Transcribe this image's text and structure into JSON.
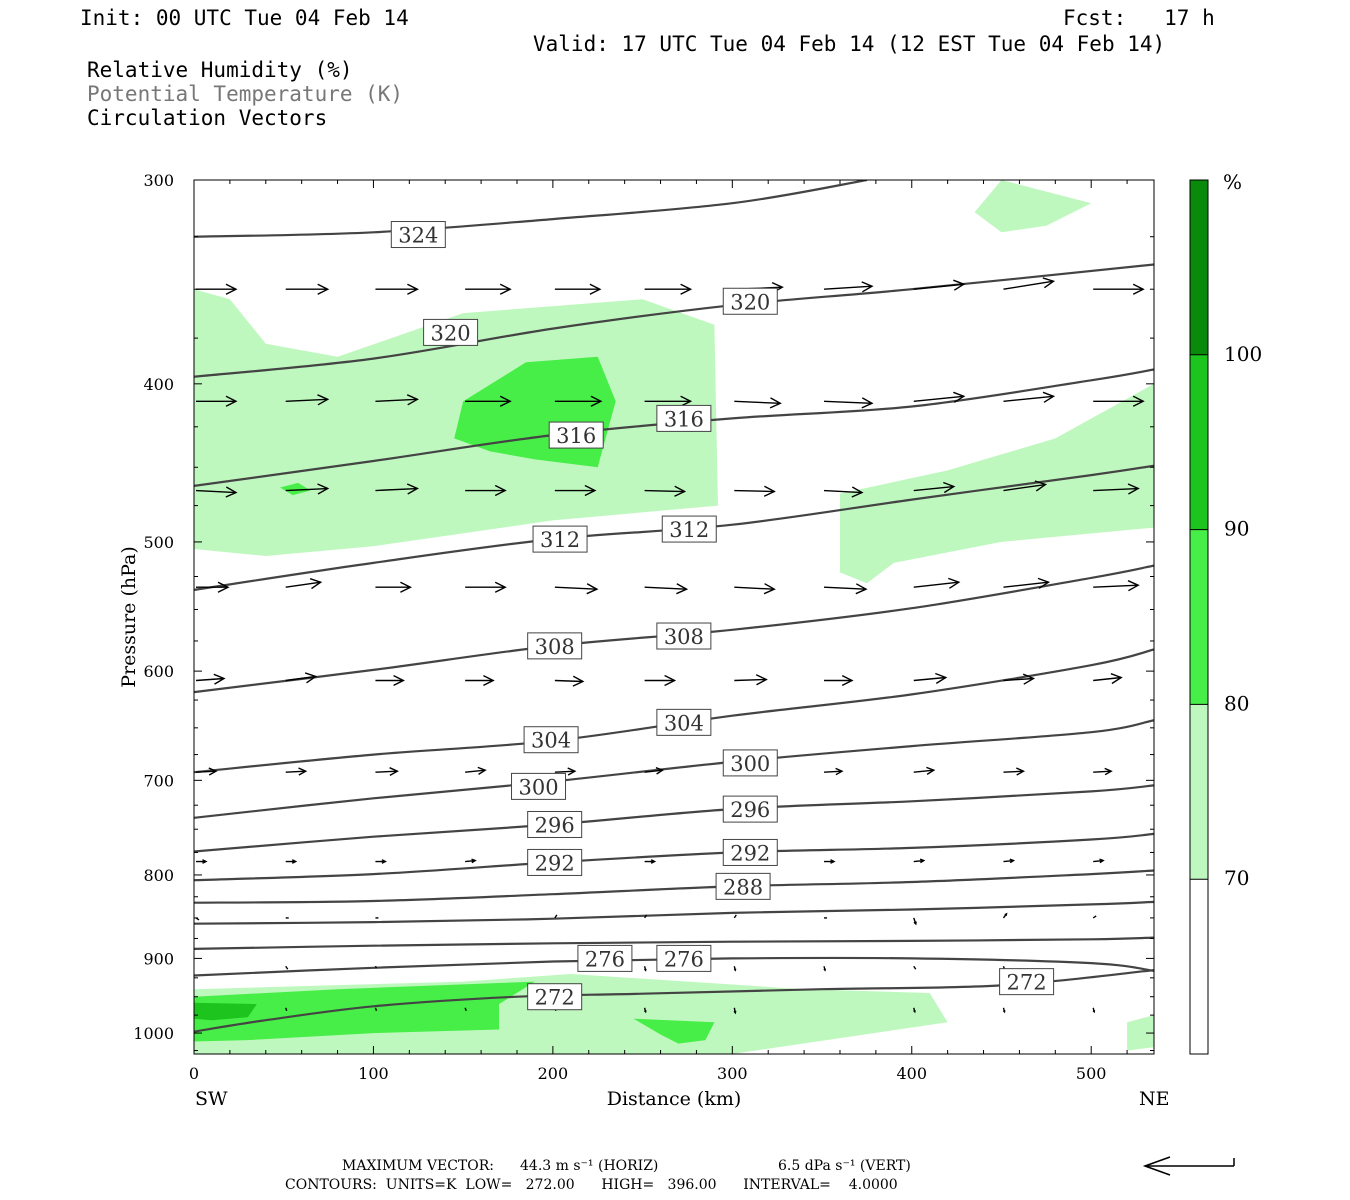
{
  "header": {
    "init": "Init: 00 UTC Tue 04 Feb 14",
    "fcst": "Fcst:   17 h",
    "valid": "Valid: 17 UTC Tue 04 Feb 14 (12 EST Tue 04 Feb 14)"
  },
  "legend": {
    "rh": "Relative Humidity (%)",
    "theta": "Potential Temperature (K)",
    "vectors": "Circulation Vectors"
  },
  "footer": {
    "max_vector_label": "MAXIMUM VECTOR:",
    "max_horiz": "44.3 m s⁻¹ (HORIZ)",
    "max_vert": "6.5 dPa s⁻¹ (VERT)",
    "contours": "CONTOURS:  UNITS=K  LOW=   272.00      HIGH=   396.00      INTERVAL=    4.0000"
  },
  "colors": {
    "rh70": "#bff8bf",
    "rh80": "#47ee47",
    "rh90": "#1ec41e",
    "rh100": "#0a8a0a",
    "contour": "#444444"
  },
  "chart_data": {
    "type": "cross-section",
    "xlabel": "Distance (km)",
    "ylabel": "Pressure (hPa)",
    "xlim": [
      0,
      535
    ],
    "ylim": [
      1030,
      300
    ],
    "y_log": true,
    "x_ticks": [
      "0",
      "100",
      "200",
      "300",
      "400",
      "500"
    ],
    "y_ticks": [
      "300",
      "400",
      "500",
      "600",
      "700",
      "800",
      "900",
      "1000"
    ],
    "x_end_labels": {
      "left": "SW",
      "right": "NE"
    },
    "colorbar": {
      "unit": "%",
      "levels": [
        "70",
        "80",
        "90",
        "100"
      ],
      "colors": [
        "#ffffff",
        "#bff8bf",
        "#47ee47",
        "#1ec41e",
        "#0a8a0a"
      ]
    },
    "theta_contours": [
      {
        "value": 324,
        "points": [
          [
            0,
            325
          ],
          [
            100,
            323
          ],
          [
            200,
            317
          ],
          [
            300,
            310
          ],
          [
            375,
            300
          ]
        ],
        "labels": [
          [
            125,
            324
          ]
        ]
      },
      {
        "value": 320,
        "points": [
          [
            0,
            396
          ],
          [
            100,
            386
          ],
          [
            200,
            370
          ],
          [
            300,
            358
          ],
          [
            400,
            350
          ],
          [
            535,
            338
          ]
        ],
        "labels": [
          [
            143,
            372
          ],
          [
            310,
            356
          ]
        ]
      },
      {
        "value": 316,
        "points": [
          [
            0,
            462
          ],
          [
            100,
            446
          ],
          [
            200,
            430
          ],
          [
            300,
            420
          ],
          [
            400,
            413
          ],
          [
            500,
            398
          ],
          [
            535,
            392
          ]
        ],
        "labels": [
          [
            213,
            430
          ],
          [
            273,
            420
          ]
        ]
      },
      {
        "value": 312,
        "points": [
          [
            0,
            535
          ],
          [
            100,
            515
          ],
          [
            200,
            498
          ],
          [
            300,
            488
          ],
          [
            400,
            471
          ],
          [
            500,
            455
          ],
          [
            535,
            449
          ]
        ],
        "labels": [
          [
            204,
            498
          ],
          [
            276,
            491
          ]
        ]
      },
      {
        "value": 308,
        "points": [
          [
            0,
            618
          ],
          [
            100,
            599
          ],
          [
            200,
            579
          ],
          [
            300,
            566
          ],
          [
            400,
            549
          ],
          [
            500,
            526
          ],
          [
            535,
            517
          ]
        ],
        "labels": [
          [
            201,
            579
          ],
          [
            273,
            571
          ]
        ]
      },
      {
        "value": 304,
        "points": [
          [
            0,
            692
          ],
          [
            100,
            675
          ],
          [
            200,
            662
          ],
          [
            300,
            639
          ],
          [
            400,
            620
          ],
          [
            500,
            595
          ],
          [
            535,
            582
          ]
        ],
        "labels": [
          [
            199,
            661
          ],
          [
            273,
            645
          ]
        ]
      },
      {
        "value": 300,
        "points": [
          [
            0,
            738
          ],
          [
            100,
            718
          ],
          [
            200,
            701
          ],
          [
            300,
            682
          ],
          [
            400,
            667
          ],
          [
            500,
            654
          ],
          [
            535,
            643
          ]
        ],
        "labels": [
          [
            192,
            706
          ],
          [
            310,
            683
          ]
        ]
      },
      {
        "value": 296,
        "points": [
          [
            0,
            774
          ],
          [
            100,
            758
          ],
          [
            200,
            745
          ],
          [
            300,
            729
          ],
          [
            400,
            721
          ],
          [
            500,
            711
          ],
          [
            535,
            705
          ]
        ],
        "labels": [
          [
            201,
            745
          ],
          [
            310,
            729
          ]
        ]
      },
      {
        "value": 292,
        "points": [
          [
            0,
            806
          ],
          [
            100,
            799
          ],
          [
            200,
            786
          ],
          [
            300,
            775
          ],
          [
            400,
            770
          ],
          [
            500,
            761
          ],
          [
            535,
            755
          ]
        ],
        "labels": [
          [
            201,
            786
          ],
          [
            310,
            775
          ]
        ]
      },
      {
        "value": 288,
        "points": [
          [
            0,
            832
          ],
          [
            100,
            830
          ],
          [
            200,
            822
          ],
          [
            300,
            813
          ],
          [
            400,
            808
          ],
          [
            500,
            799
          ],
          [
            535,
            795
          ]
        ],
        "labels": [
          [
            306,
            813
          ]
        ]
      },
      {
        "value": 284,
        "points": [
          [
            0,
            857
          ],
          [
            100,
            855
          ],
          [
            200,
            851
          ],
          [
            300,
            844
          ],
          [
            400,
            840
          ],
          [
            500,
            834
          ],
          [
            535,
            831
          ]
        ],
        "labels": []
      },
      {
        "value": 280,
        "points": [
          [
            0,
            888
          ],
          [
            100,
            884
          ],
          [
            200,
            881
          ],
          [
            300,
            879
          ],
          [
            400,
            878
          ],
          [
            500,
            876
          ],
          [
            535,
            874
          ]
        ],
        "labels": []
      },
      {
        "value": 276,
        "points": [
          [
            0,
            922
          ],
          [
            100,
            912
          ],
          [
            200,
            904
          ],
          [
            300,
            900
          ],
          [
            400,
            900
          ],
          [
            500,
            906
          ],
          [
            535,
            916
          ]
        ],
        "labels": [
          [
            229,
            900
          ],
          [
            273,
            900
          ]
        ]
      },
      {
        "value": 272,
        "points": [
          [
            0,
            998
          ],
          [
            40,
            982
          ],
          [
            100,
            963
          ],
          [
            180,
            950
          ],
          [
            250,
            946
          ],
          [
            350,
            940
          ],
          [
            450,
            935
          ],
          [
            535,
            915
          ]
        ],
        "labels": [
          [
            201,
            950
          ],
          [
            464,
            930
          ]
        ]
      }
    ],
    "rh_regions": [
      {
        "level": 70,
        "points": [
          [
            0,
            350
          ],
          [
            20,
            355
          ],
          [
            40,
            378
          ],
          [
            80,
            385
          ],
          [
            150,
            362
          ],
          [
            250,
            355
          ],
          [
            290,
            368
          ],
          [
            292,
            475
          ],
          [
            200,
            485
          ],
          [
            100,
            503
          ],
          [
            40,
            510
          ],
          [
            0,
            505
          ]
        ]
      },
      {
        "level": 70,
        "points": [
          [
            450,
            300
          ],
          [
            500,
            310
          ],
          [
            475,
            320
          ],
          [
            450,
            323
          ],
          [
            435,
            314
          ]
        ]
      },
      {
        "level": 70,
        "points": [
          [
            360,
            467
          ],
          [
            420,
            452
          ],
          [
            480,
            432
          ],
          [
            535,
            400
          ],
          [
            535,
            490
          ],
          [
            450,
            500
          ],
          [
            390,
            515
          ],
          [
            375,
            530
          ],
          [
            360,
            522
          ]
        ]
      },
      {
        "level": 80,
        "points": [
          [
            150,
            410
          ],
          [
            185,
            388
          ],
          [
            225,
            385
          ],
          [
            235,
            410
          ],
          [
            225,
            450
          ],
          [
            190,
            445
          ],
          [
            165,
            440
          ],
          [
            145,
            432
          ]
        ]
      },
      {
        "level": 80,
        "points": [
          [
            48,
            463
          ],
          [
            58,
            460
          ],
          [
            65,
            465
          ],
          [
            55,
            468
          ]
        ]
      },
      {
        "level": 70,
        "points": [
          [
            0,
            940
          ],
          [
            150,
            930
          ],
          [
            210,
            920
          ],
          [
            340,
            940
          ],
          [
            410,
            945
          ],
          [
            420,
            985
          ],
          [
            300,
            1030
          ],
          [
            80,
            1030
          ],
          [
            0,
            1030
          ]
        ]
      },
      {
        "level": 70,
        "points": [
          [
            520,
            985
          ],
          [
            535,
            975
          ],
          [
            535,
            1020
          ],
          [
            520,
            1025
          ]
        ]
      },
      {
        "level": 80,
        "points": [
          [
            0,
            950
          ],
          [
            80,
            940
          ],
          [
            190,
            930
          ],
          [
            170,
            960
          ],
          [
            170,
            995
          ],
          [
            100,
            1000
          ],
          [
            30,
            1010
          ],
          [
            0,
            1012
          ]
        ]
      },
      {
        "level": 80,
        "points": [
          [
            245,
            980
          ],
          [
            290,
            985
          ],
          [
            285,
            1010
          ],
          [
            270,
            1015
          ],
          [
            260,
            1002
          ]
        ]
      },
      {
        "level": 90,
        "points": [
          [
            0,
            958
          ],
          [
            35,
            960
          ],
          [
            30,
            978
          ],
          [
            10,
            982
          ],
          [
            0,
            980
          ]
        ]
      }
    ],
    "vectors": [
      {
        "p": 350,
        "xs": [
          0,
          50,
          100,
          150,
          200,
          250,
          300,
          350,
          400,
          450,
          500
        ],
        "dx": [
          40,
          42,
          42,
          45,
          45,
          46,
          48,
          48,
          50,
          50,
          50
        ],
        "dp": [
          0,
          0,
          0,
          0,
          0,
          0,
          -2,
          -3,
          -5,
          -8,
          0
        ]
      },
      {
        "p": 410,
        "xs": [
          0,
          50,
          100,
          150,
          200,
          250,
          300,
          350,
          400,
          450,
          500
        ],
        "dx": [
          40,
          42,
          42,
          45,
          46,
          46,
          46,
          48,
          50,
          50,
          50
        ],
        "dp": [
          0,
          -2,
          -2,
          0,
          0,
          0,
          2,
          2,
          -5,
          -5,
          0
        ]
      },
      {
        "p": 465,
        "xs": [
          0,
          50,
          100,
          150,
          200,
          250,
          300,
          350,
          400,
          450,
          500
        ],
        "dx": [
          40,
          42,
          42,
          40,
          40,
          40,
          40,
          38,
          40,
          42,
          45
        ],
        "dp": [
          2,
          -2,
          -2,
          0,
          0,
          1,
          1,
          2,
          -4,
          -6,
          -2
        ]
      },
      {
        "p": 533,
        "xs": [
          0,
          50,
          100,
          150,
          200,
          250,
          300,
          350,
          400,
          450,
          500
        ],
        "dx": [
          32,
          35,
          35,
          40,
          42,
          42,
          40,
          42,
          45,
          45,
          45
        ],
        "dp": [
          0,
          -5,
          0,
          0,
          2,
          2,
          2,
          2,
          -5,
          -5,
          -2
        ]
      },
      {
        "p": 608,
        "xs": [
          0,
          50,
          100,
          150,
          200,
          250,
          300,
          350,
          400,
          450,
          500
        ],
        "dx": [
          28,
          30,
          28,
          28,
          28,
          30,
          32,
          28,
          32,
          30,
          28
        ],
        "dp": [
          -2,
          -4,
          0,
          0,
          1,
          0,
          -1,
          0,
          -3,
          -2,
          -3
        ]
      },
      {
        "p": 692,
        "xs": [
          0,
          50,
          100,
          150,
          200,
          250,
          300,
          350,
          400,
          450,
          500
        ],
        "dx": [
          20,
          20,
          22,
          20,
          20,
          18,
          20,
          18,
          20,
          20,
          18
        ],
        "dp": [
          -1,
          -1,
          -1,
          -2,
          -1,
          -2,
          -1,
          -1,
          -2,
          -1,
          -1
        ]
      },
      {
        "p": 785,
        "xs": [
          0,
          50,
          100,
          150,
          200,
          250,
          300,
          350,
          400,
          450,
          500
        ],
        "dx": [
          10,
          10,
          10,
          10,
          10,
          10,
          8,
          10,
          10,
          10,
          10
        ],
        "dp": [
          0,
          0,
          0,
          -1,
          -1,
          0,
          0,
          0,
          -1,
          -1,
          -1
        ]
      },
      {
        "p": 850,
        "xs": [
          0,
          50,
          100,
          200,
          250,
          300,
          350,
          400,
          450,
          500
        ],
        "dx": [
          3,
          3,
          3,
          2,
          2,
          2,
          3,
          2,
          3,
          3
        ],
        "dp": [
          2,
          0,
          0,
          -3,
          -3,
          -3,
          0,
          6,
          -4,
          -2
        ]
      },
      {
        "p": 910,
        "xs": [
          50,
          100,
          250,
          300,
          350,
          400,
          450
        ],
        "dx": [
          2,
          1,
          1,
          1,
          1,
          2,
          1
        ],
        "dp": [
          3,
          2,
          4,
          4,
          4,
          3,
          3
        ]
      },
      {
        "p": 965,
        "xs": [
          50,
          100,
          150,
          200,
          250,
          300,
          400,
          450,
          500
        ],
        "dx": [
          1,
          1,
          1,
          1,
          1,
          1,
          1,
          1,
          1
        ],
        "dp": [
          3,
          3,
          3,
          3,
          4,
          5,
          4,
          4,
          4
        ]
      }
    ]
  }
}
